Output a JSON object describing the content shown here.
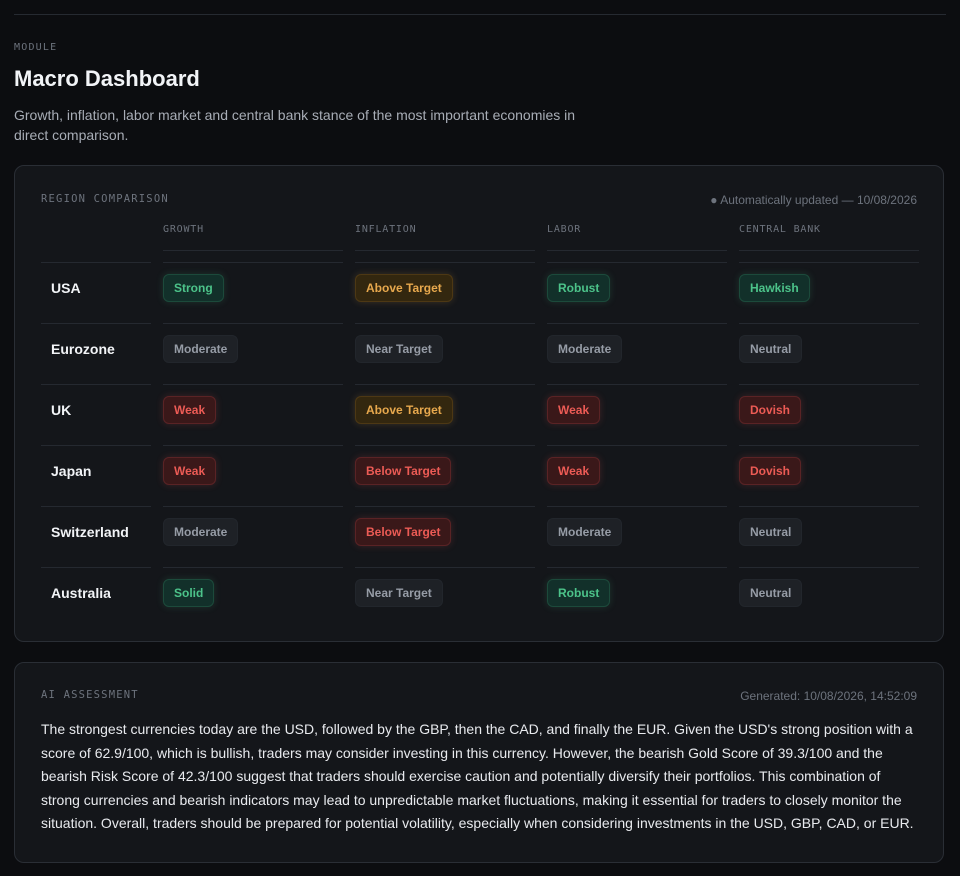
{
  "page": {
    "eyebrow": "MODULE",
    "title": "Macro Dashboard",
    "description": "Growth, inflation, labor market and central bank stance of the most important economies in direct comparison."
  },
  "region_comparison": {
    "label": "REGION COMPARISON",
    "status": "● Automatically updated — 10/08/2026",
    "columns": [
      "GROWTH",
      "INFLATION",
      "LABOR",
      "CENTRAL BANK"
    ],
    "rows": [
      {
        "region": "USA",
        "cells": [
          {
            "text": "Strong",
            "tone": "positive"
          },
          {
            "text": "Above Target",
            "tone": "warning"
          },
          {
            "text": "Robust",
            "tone": "positive"
          },
          {
            "text": "Hawkish",
            "tone": "positive"
          }
        ]
      },
      {
        "region": "Eurozone",
        "cells": [
          {
            "text": "Moderate",
            "tone": "neutral"
          },
          {
            "text": "Near Target",
            "tone": "neutral"
          },
          {
            "text": "Moderate",
            "tone": "neutral"
          },
          {
            "text": "Neutral",
            "tone": "neutral"
          }
        ]
      },
      {
        "region": "UK",
        "cells": [
          {
            "text": "Weak",
            "tone": "negative"
          },
          {
            "text": "Above Target",
            "tone": "warning"
          },
          {
            "text": "Weak",
            "tone": "negative"
          },
          {
            "text": "Dovish",
            "tone": "negative"
          }
        ]
      },
      {
        "region": "Japan",
        "cells": [
          {
            "text": "Weak",
            "tone": "negative"
          },
          {
            "text": "Below Target",
            "tone": "negative"
          },
          {
            "text": "Weak",
            "tone": "negative"
          },
          {
            "text": "Dovish",
            "tone": "negative"
          }
        ]
      },
      {
        "region": "Switzerland",
        "cells": [
          {
            "text": "Moderate",
            "tone": "neutral"
          },
          {
            "text": "Below Target",
            "tone": "negative"
          },
          {
            "text": "Moderate",
            "tone": "neutral"
          },
          {
            "text": "Neutral",
            "tone": "neutral"
          }
        ]
      },
      {
        "region": "Australia",
        "cells": [
          {
            "text": "Solid",
            "tone": "positive"
          },
          {
            "text": "Near Target",
            "tone": "neutral"
          },
          {
            "text": "Robust",
            "tone": "positive"
          },
          {
            "text": "Neutral",
            "tone": "neutral"
          }
        ]
      }
    ]
  },
  "ai_assessment": {
    "label": "AI ASSESSMENT",
    "generated": "Generated: 10/08/2026, 14:52:09",
    "text": "The strongest currencies today are the USD, followed by the GBP, then the CAD, and finally the EUR. Given the USD's strong position with a score of 62.9/100, which is bullish, traders may consider investing in this currency. However, the bearish Gold Score of 39.3/100 and the bearish Risk Score of 42.3/100 suggest that traders should exercise caution and potentially diversify their portfolios. This combination of strong currencies and bearish indicators may lead to unpredictable market fluctuations, making it essential for traders to closely monitor the situation. Overall, traders should be prepared for potential volatility, especially when considering investments in the USD, GBP, CAD, or EUR."
  },
  "colors": {
    "background": "#0c0d10",
    "card": "#14161a",
    "positive": "#4cc38a",
    "warning": "#e7a84d",
    "negative": "#ec5b55",
    "neutral": "#969ca6"
  }
}
